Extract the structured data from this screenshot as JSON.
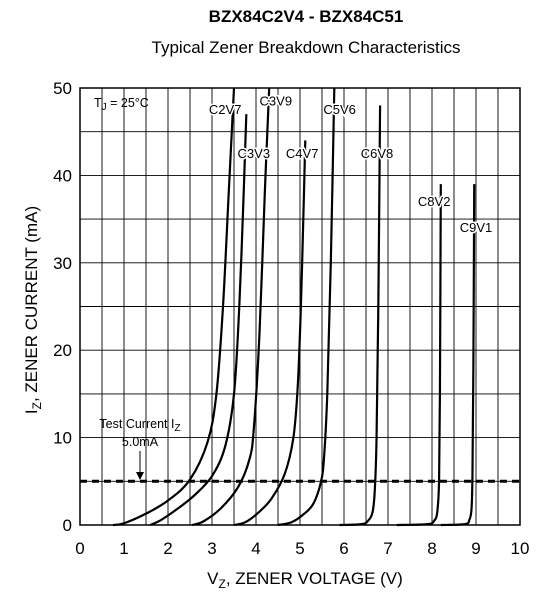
{
  "chart_data": {
    "type": "line",
    "title": "BZX84C2V4 - BZX84C51",
    "subtitle": "Typical Zener Breakdown Characteristics",
    "xlabel": "V",
    "xlabel_sub": "Z",
    "xlabel_rest": ", ZENER VOLTAGE (V)",
    "ylabel": "I",
    "ylabel_sub": "Z",
    "ylabel_rest": ", ZENER CURRENT (mA)",
    "xlim": [
      0,
      10
    ],
    "ylim": [
      0,
      50
    ],
    "x_ticks": [
      "0",
      "1",
      "2",
      "3",
      "4",
      "5",
      "6",
      "7",
      "8",
      "9",
      "10"
    ],
    "y_ticks": [
      "0",
      "10",
      "20",
      "30",
      "40",
      "50"
    ],
    "grid": true,
    "temperature_label": {
      "main": "T",
      "sub": "J",
      "rest": " = 25°C"
    },
    "test_current": {
      "value": 5,
      "label_line1_main": "Test Current I",
      "label_line1_sub": "Z",
      "label_line2": "5.0mA"
    },
    "series": [
      {
        "name": "C2V7",
        "points": [
          [
            0.75,
            0
          ],
          [
            1.0,
            0.2
          ],
          [
            1.5,
            1.3
          ],
          [
            2.0,
            2.8
          ],
          [
            2.5,
            5.2
          ],
          [
            2.9,
            9.5
          ],
          [
            3.1,
            15
          ],
          [
            3.25,
            25
          ],
          [
            3.38,
            38
          ],
          [
            3.5,
            50
          ]
        ]
      },
      {
        "name": "C3V3",
        "points": [
          [
            1.6,
            0
          ],
          [
            1.85,
            0.6
          ],
          [
            2.2,
            1.8
          ],
          [
            2.6,
            3.4
          ],
          [
            3.0,
            5.6
          ],
          [
            3.3,
            9
          ],
          [
            3.5,
            15
          ],
          [
            3.62,
            25
          ],
          [
            3.72,
            38
          ],
          [
            3.78,
            47
          ]
        ]
      },
      {
        "name": "C3V9",
        "points": [
          [
            2.55,
            0
          ],
          [
            2.8,
            0.4
          ],
          [
            3.2,
            1.9
          ],
          [
            3.6,
            4.4
          ],
          [
            3.85,
            7.5
          ],
          [
            3.95,
            11
          ],
          [
            4.08,
            22
          ],
          [
            4.2,
            38
          ],
          [
            4.3,
            50
          ]
        ]
      },
      {
        "name": "C4V7",
        "points": [
          [
            3.5,
            0
          ],
          [
            3.75,
            0.3
          ],
          [
            4.05,
            1.4
          ],
          [
            4.35,
            3.0
          ],
          [
            4.65,
            5.8
          ],
          [
            4.85,
            10
          ],
          [
            4.95,
            16
          ],
          [
            5.02,
            25
          ],
          [
            5.08,
            36
          ],
          [
            5.12,
            44
          ]
        ]
      },
      {
        "name": "C5V6",
        "points": [
          [
            4.5,
            0
          ],
          [
            4.8,
            0.3
          ],
          [
            5.05,
            1.1
          ],
          [
            5.3,
            2.4
          ],
          [
            5.48,
            5.0
          ],
          [
            5.55,
            8
          ],
          [
            5.62,
            15
          ],
          [
            5.7,
            30
          ],
          [
            5.78,
            50
          ]
        ]
      },
      {
        "name": "C6V8",
        "points": [
          [
            5.9,
            0
          ],
          [
            6.4,
            0.1
          ],
          [
            6.55,
            0.5
          ],
          [
            6.65,
            1.5
          ],
          [
            6.7,
            4
          ],
          [
            6.74,
            10
          ],
          [
            6.78,
            25
          ],
          [
            6.82,
            48
          ]
        ]
      },
      {
        "name": "C8V2",
        "points": [
          [
            7.2,
            0
          ],
          [
            7.9,
            0.1
          ],
          [
            8.05,
            0.5
          ],
          [
            8.12,
            1.5
          ],
          [
            8.16,
            5
          ],
          [
            8.18,
            15
          ],
          [
            8.2,
            39
          ]
        ]
      },
      {
        "name": "C9V1",
        "points": [
          [
            8.2,
            0
          ],
          [
            8.75,
            0.1
          ],
          [
            8.85,
            0.6
          ],
          [
            8.9,
            2
          ],
          [
            8.92,
            6
          ],
          [
            8.94,
            18
          ],
          [
            8.96,
            39
          ]
        ]
      }
    ]
  }
}
